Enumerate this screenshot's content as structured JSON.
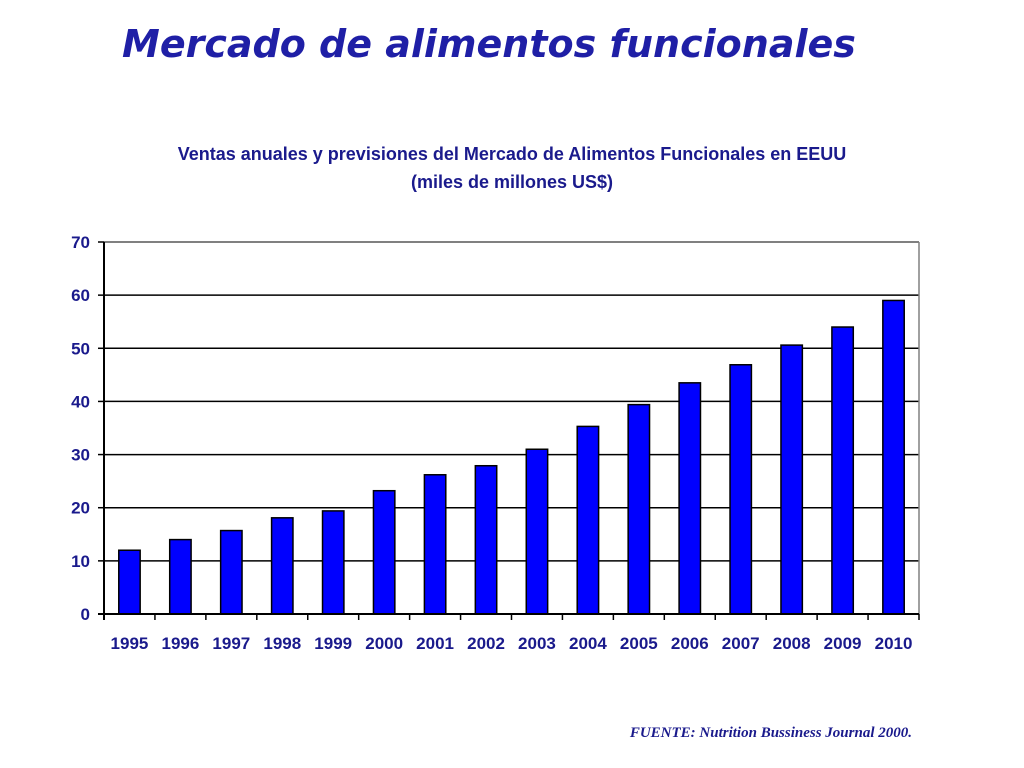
{
  "page": {
    "title": "Mercado de alimentos funcionales",
    "source": "FUENTE: Nutrition Bussiness Journal 2000."
  },
  "colors": {
    "bar_fill": "#0000ff",
    "bar_edge": "#000000",
    "text": "#1a1a8c",
    "title": "#1f1fa6"
  },
  "chart_data": {
    "type": "bar",
    "title": "Ventas anuales y previsiones del Mercado de Alimentos Funcionales en EEUU",
    "subtitle": "(miles de millones US$)",
    "xlabel": "",
    "ylabel": "",
    "categories": [
      "1995",
      "1996",
      "1997",
      "1998",
      "1999",
      "2000",
      "2001",
      "2002",
      "2003",
      "2004",
      "2005",
      "2006",
      "2007",
      "2008",
      "2009",
      "2010"
    ],
    "values": [
      12,
      14,
      15.7,
      18.1,
      19.4,
      23.2,
      26.2,
      27.9,
      31,
      35.3,
      39.4,
      43.5,
      46.9,
      50.6,
      54,
      59
    ],
    "ylim": [
      0,
      70
    ],
    "yticks": [
      0,
      10,
      20,
      30,
      40,
      50,
      60,
      70
    ],
    "grid": true,
    "legend": "none"
  }
}
